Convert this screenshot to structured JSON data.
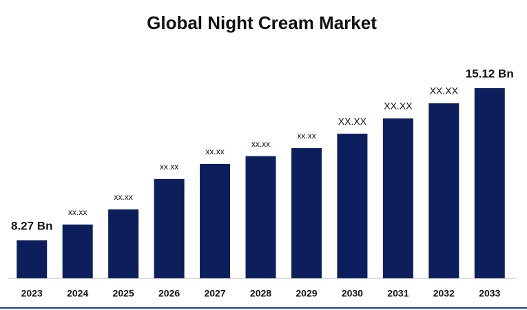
{
  "chart_data": {
    "type": "bar",
    "title": "Global Night Cream Market",
    "categories": [
      "2023",
      "2024",
      "2025",
      "2026",
      "2027",
      "2028",
      "2029",
      "2030",
      "2031",
      "2032",
      "2033"
    ],
    "values": [
      8.27,
      8.98,
      9.66,
      11.03,
      11.71,
      12.06,
      12.42,
      13.07,
      13.76,
      14.44,
      15.12
    ],
    "value_labels": [
      "8.27 Bn",
      "xx.xx",
      "xx.xx",
      "xx.xx",
      "xx.xx",
      "xx.xx",
      "xx.xx",
      "XX.XX",
      "XX.XX",
      "XX.XX",
      "15.12 Bn"
    ],
    "color": "#0c1f5c"
  }
}
